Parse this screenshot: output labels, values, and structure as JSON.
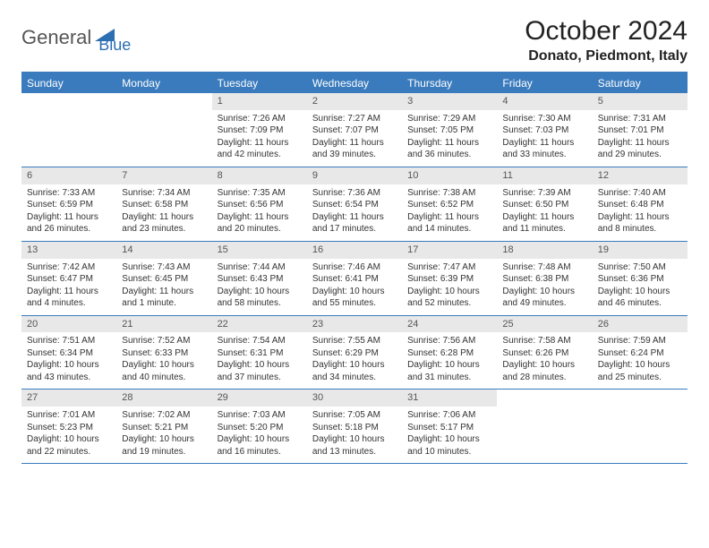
{
  "logo": {
    "part1": "General",
    "part2": "Blue"
  },
  "title": "October 2024",
  "location": "Donato, Piedmont, Italy",
  "colors": {
    "header_bg": "#3a7bbd",
    "daynum_bg": "#e8e8e8",
    "logo_gray": "#555555",
    "logo_blue": "#2c6fb3"
  },
  "day_names": [
    "Sunday",
    "Monday",
    "Tuesday",
    "Wednesday",
    "Thursday",
    "Friday",
    "Saturday"
  ],
  "weeks": [
    [
      null,
      null,
      {
        "n": "1",
        "sr": "Sunrise: 7:26 AM",
        "ss": "Sunset: 7:09 PM",
        "dl": "Daylight: 11 hours and 42 minutes."
      },
      {
        "n": "2",
        "sr": "Sunrise: 7:27 AM",
        "ss": "Sunset: 7:07 PM",
        "dl": "Daylight: 11 hours and 39 minutes."
      },
      {
        "n": "3",
        "sr": "Sunrise: 7:29 AM",
        "ss": "Sunset: 7:05 PM",
        "dl": "Daylight: 11 hours and 36 minutes."
      },
      {
        "n": "4",
        "sr": "Sunrise: 7:30 AM",
        "ss": "Sunset: 7:03 PM",
        "dl": "Daylight: 11 hours and 33 minutes."
      },
      {
        "n": "5",
        "sr": "Sunrise: 7:31 AM",
        "ss": "Sunset: 7:01 PM",
        "dl": "Daylight: 11 hours and 29 minutes."
      }
    ],
    [
      {
        "n": "6",
        "sr": "Sunrise: 7:33 AM",
        "ss": "Sunset: 6:59 PM",
        "dl": "Daylight: 11 hours and 26 minutes."
      },
      {
        "n": "7",
        "sr": "Sunrise: 7:34 AM",
        "ss": "Sunset: 6:58 PM",
        "dl": "Daylight: 11 hours and 23 minutes."
      },
      {
        "n": "8",
        "sr": "Sunrise: 7:35 AM",
        "ss": "Sunset: 6:56 PM",
        "dl": "Daylight: 11 hours and 20 minutes."
      },
      {
        "n": "9",
        "sr": "Sunrise: 7:36 AM",
        "ss": "Sunset: 6:54 PM",
        "dl": "Daylight: 11 hours and 17 minutes."
      },
      {
        "n": "10",
        "sr": "Sunrise: 7:38 AM",
        "ss": "Sunset: 6:52 PM",
        "dl": "Daylight: 11 hours and 14 minutes."
      },
      {
        "n": "11",
        "sr": "Sunrise: 7:39 AM",
        "ss": "Sunset: 6:50 PM",
        "dl": "Daylight: 11 hours and 11 minutes."
      },
      {
        "n": "12",
        "sr": "Sunrise: 7:40 AM",
        "ss": "Sunset: 6:48 PM",
        "dl": "Daylight: 11 hours and 8 minutes."
      }
    ],
    [
      {
        "n": "13",
        "sr": "Sunrise: 7:42 AM",
        "ss": "Sunset: 6:47 PM",
        "dl": "Daylight: 11 hours and 4 minutes."
      },
      {
        "n": "14",
        "sr": "Sunrise: 7:43 AM",
        "ss": "Sunset: 6:45 PM",
        "dl": "Daylight: 11 hours and 1 minute."
      },
      {
        "n": "15",
        "sr": "Sunrise: 7:44 AM",
        "ss": "Sunset: 6:43 PM",
        "dl": "Daylight: 10 hours and 58 minutes."
      },
      {
        "n": "16",
        "sr": "Sunrise: 7:46 AM",
        "ss": "Sunset: 6:41 PM",
        "dl": "Daylight: 10 hours and 55 minutes."
      },
      {
        "n": "17",
        "sr": "Sunrise: 7:47 AM",
        "ss": "Sunset: 6:39 PM",
        "dl": "Daylight: 10 hours and 52 minutes."
      },
      {
        "n": "18",
        "sr": "Sunrise: 7:48 AM",
        "ss": "Sunset: 6:38 PM",
        "dl": "Daylight: 10 hours and 49 minutes."
      },
      {
        "n": "19",
        "sr": "Sunrise: 7:50 AM",
        "ss": "Sunset: 6:36 PM",
        "dl": "Daylight: 10 hours and 46 minutes."
      }
    ],
    [
      {
        "n": "20",
        "sr": "Sunrise: 7:51 AM",
        "ss": "Sunset: 6:34 PM",
        "dl": "Daylight: 10 hours and 43 minutes."
      },
      {
        "n": "21",
        "sr": "Sunrise: 7:52 AM",
        "ss": "Sunset: 6:33 PM",
        "dl": "Daylight: 10 hours and 40 minutes."
      },
      {
        "n": "22",
        "sr": "Sunrise: 7:54 AM",
        "ss": "Sunset: 6:31 PM",
        "dl": "Daylight: 10 hours and 37 minutes."
      },
      {
        "n": "23",
        "sr": "Sunrise: 7:55 AM",
        "ss": "Sunset: 6:29 PM",
        "dl": "Daylight: 10 hours and 34 minutes."
      },
      {
        "n": "24",
        "sr": "Sunrise: 7:56 AM",
        "ss": "Sunset: 6:28 PM",
        "dl": "Daylight: 10 hours and 31 minutes."
      },
      {
        "n": "25",
        "sr": "Sunrise: 7:58 AM",
        "ss": "Sunset: 6:26 PM",
        "dl": "Daylight: 10 hours and 28 minutes."
      },
      {
        "n": "26",
        "sr": "Sunrise: 7:59 AM",
        "ss": "Sunset: 6:24 PM",
        "dl": "Daylight: 10 hours and 25 minutes."
      }
    ],
    [
      {
        "n": "27",
        "sr": "Sunrise: 7:01 AM",
        "ss": "Sunset: 5:23 PM",
        "dl": "Daylight: 10 hours and 22 minutes."
      },
      {
        "n": "28",
        "sr": "Sunrise: 7:02 AM",
        "ss": "Sunset: 5:21 PM",
        "dl": "Daylight: 10 hours and 19 minutes."
      },
      {
        "n": "29",
        "sr": "Sunrise: 7:03 AM",
        "ss": "Sunset: 5:20 PM",
        "dl": "Daylight: 10 hours and 16 minutes."
      },
      {
        "n": "30",
        "sr": "Sunrise: 7:05 AM",
        "ss": "Sunset: 5:18 PM",
        "dl": "Daylight: 10 hours and 13 minutes."
      },
      {
        "n": "31",
        "sr": "Sunrise: 7:06 AM",
        "ss": "Sunset: 5:17 PM",
        "dl": "Daylight: 10 hours and 10 minutes."
      },
      null,
      null
    ]
  ]
}
